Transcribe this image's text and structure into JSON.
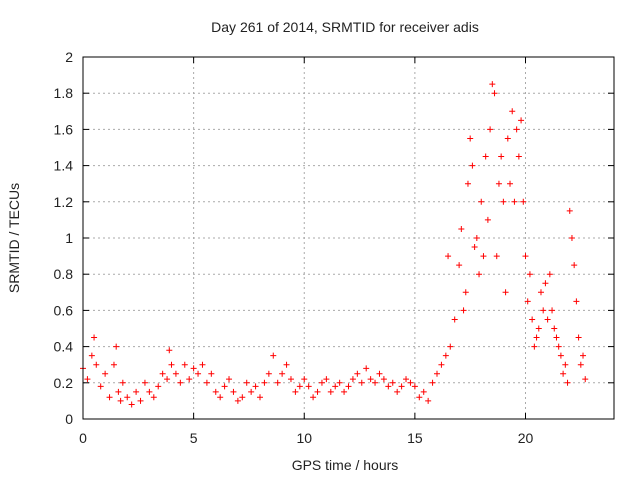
{
  "chart_data": {
    "type": "scatter",
    "title": "Day 261 of 2014, SRMTID for receiver adis",
    "xlabel": "GPS time / hours",
    "ylabel": "SRMTID / TECUs",
    "xlim": [
      0,
      24
    ],
    "ylim": [
      0,
      2
    ],
    "xticks": [
      0,
      5,
      10,
      15,
      20
    ],
    "yticks": [
      0,
      0.2,
      0.4,
      0.6,
      0.8,
      1,
      1.2,
      1.4,
      1.6,
      1.8,
      2
    ],
    "xtick_labels": [
      "0",
      "5",
      "10",
      "15",
      "20"
    ],
    "ytick_labels": [
      "0",
      "0.2",
      "0.4",
      "0.6",
      "0.8",
      "1",
      "1.2",
      "1.4",
      "1.6",
      "1.8",
      "2"
    ],
    "grid": true,
    "marker": "+",
    "colors": {
      "series": "#ff0000",
      "grid": "#aaaaaa",
      "axis": "#000000"
    },
    "series": [
      {
        "name": "SRMTID",
        "x": [
          0.0,
          0.2,
          0.4,
          0.5,
          0.6,
          0.8,
          1.0,
          1.2,
          1.4,
          1.5,
          1.6,
          1.7,
          1.8,
          2.0,
          2.2,
          2.4,
          2.6,
          2.8,
          3.0,
          3.2,
          3.4,
          3.6,
          3.8,
          3.9,
          4.0,
          4.2,
          4.4,
          4.6,
          4.8,
          5.0,
          5.2,
          5.4,
          5.6,
          5.8,
          6.0,
          6.2,
          6.4,
          6.6,
          6.8,
          7.0,
          7.2,
          7.4,
          7.6,
          7.8,
          8.0,
          8.2,
          8.4,
          8.6,
          8.8,
          9.0,
          9.2,
          9.4,
          9.6,
          9.8,
          10.0,
          10.2,
          10.4,
          10.6,
          10.8,
          11.0,
          11.2,
          11.4,
          11.6,
          11.8,
          12.0,
          12.2,
          12.4,
          12.6,
          12.8,
          13.0,
          13.2,
          13.4,
          13.6,
          13.8,
          14.0,
          14.2,
          14.4,
          14.6,
          14.8,
          15.0,
          15.2,
          15.4,
          15.6,
          15.8,
          16.0,
          16.2,
          16.4,
          16.5,
          16.6,
          16.8,
          17.0,
          17.1,
          17.2,
          17.3,
          17.4,
          17.5,
          17.6,
          17.7,
          17.8,
          17.9,
          18.0,
          18.1,
          18.2,
          18.3,
          18.4,
          18.5,
          18.6,
          18.7,
          18.8,
          18.9,
          19.0,
          19.1,
          19.2,
          19.3,
          19.4,
          19.5,
          19.6,
          19.7,
          19.8,
          19.9,
          20.0,
          20.1,
          20.2,
          20.3,
          20.4,
          20.5,
          20.6,
          20.7,
          20.8,
          20.9,
          21.0,
          21.1,
          21.2,
          21.3,
          21.4,
          21.5,
          21.6,
          21.7,
          21.8,
          21.9,
          22.0,
          22.1,
          22.2,
          22.3,
          22.4,
          22.5,
          22.6,
          22.7
        ],
        "y": [
          0.28,
          0.22,
          0.35,
          0.45,
          0.3,
          0.18,
          0.25,
          0.12,
          0.3,
          0.4,
          0.15,
          0.1,
          0.2,
          0.12,
          0.08,
          0.15,
          0.1,
          0.2,
          0.15,
          0.12,
          0.18,
          0.25,
          0.22,
          0.38,
          0.3,
          0.25,
          0.2,
          0.3,
          0.22,
          0.28,
          0.25,
          0.3,
          0.2,
          0.25,
          0.15,
          0.12,
          0.18,
          0.22,
          0.15,
          0.1,
          0.12,
          0.2,
          0.15,
          0.18,
          0.12,
          0.2,
          0.25,
          0.35,
          0.2,
          0.25,
          0.3,
          0.22,
          0.15,
          0.18,
          0.22,
          0.18,
          0.12,
          0.15,
          0.2,
          0.22,
          0.15,
          0.18,
          0.2,
          0.15,
          0.18,
          0.22,
          0.25,
          0.2,
          0.28,
          0.22,
          0.2,
          0.25,
          0.22,
          0.18,
          0.2,
          0.15,
          0.18,
          0.22,
          0.2,
          0.18,
          0.12,
          0.15,
          0.1,
          0.2,
          0.25,
          0.3,
          0.35,
          0.9,
          0.4,
          0.55,
          0.85,
          1.05,
          0.6,
          0.7,
          1.3,
          1.55,
          1.4,
          0.95,
          1.0,
          0.8,
          1.2,
          0.9,
          1.45,
          1.1,
          1.6,
          1.85,
          1.8,
          0.9,
          1.3,
          1.45,
          1.2,
          0.7,
          1.55,
          1.3,
          1.7,
          1.2,
          1.6,
          1.45,
          1.65,
          1.2,
          0.9,
          0.65,
          0.8,
          0.55,
          0.4,
          0.45,
          0.5,
          0.7,
          0.6,
          0.75,
          0.55,
          0.8,
          0.6,
          0.5,
          0.45,
          0.4,
          0.35,
          0.25,
          0.3,
          0.2,
          1.15,
          1.0,
          0.85,
          0.65,
          0.45,
          0.3,
          0.35,
          0.22
        ]
      }
    ]
  }
}
